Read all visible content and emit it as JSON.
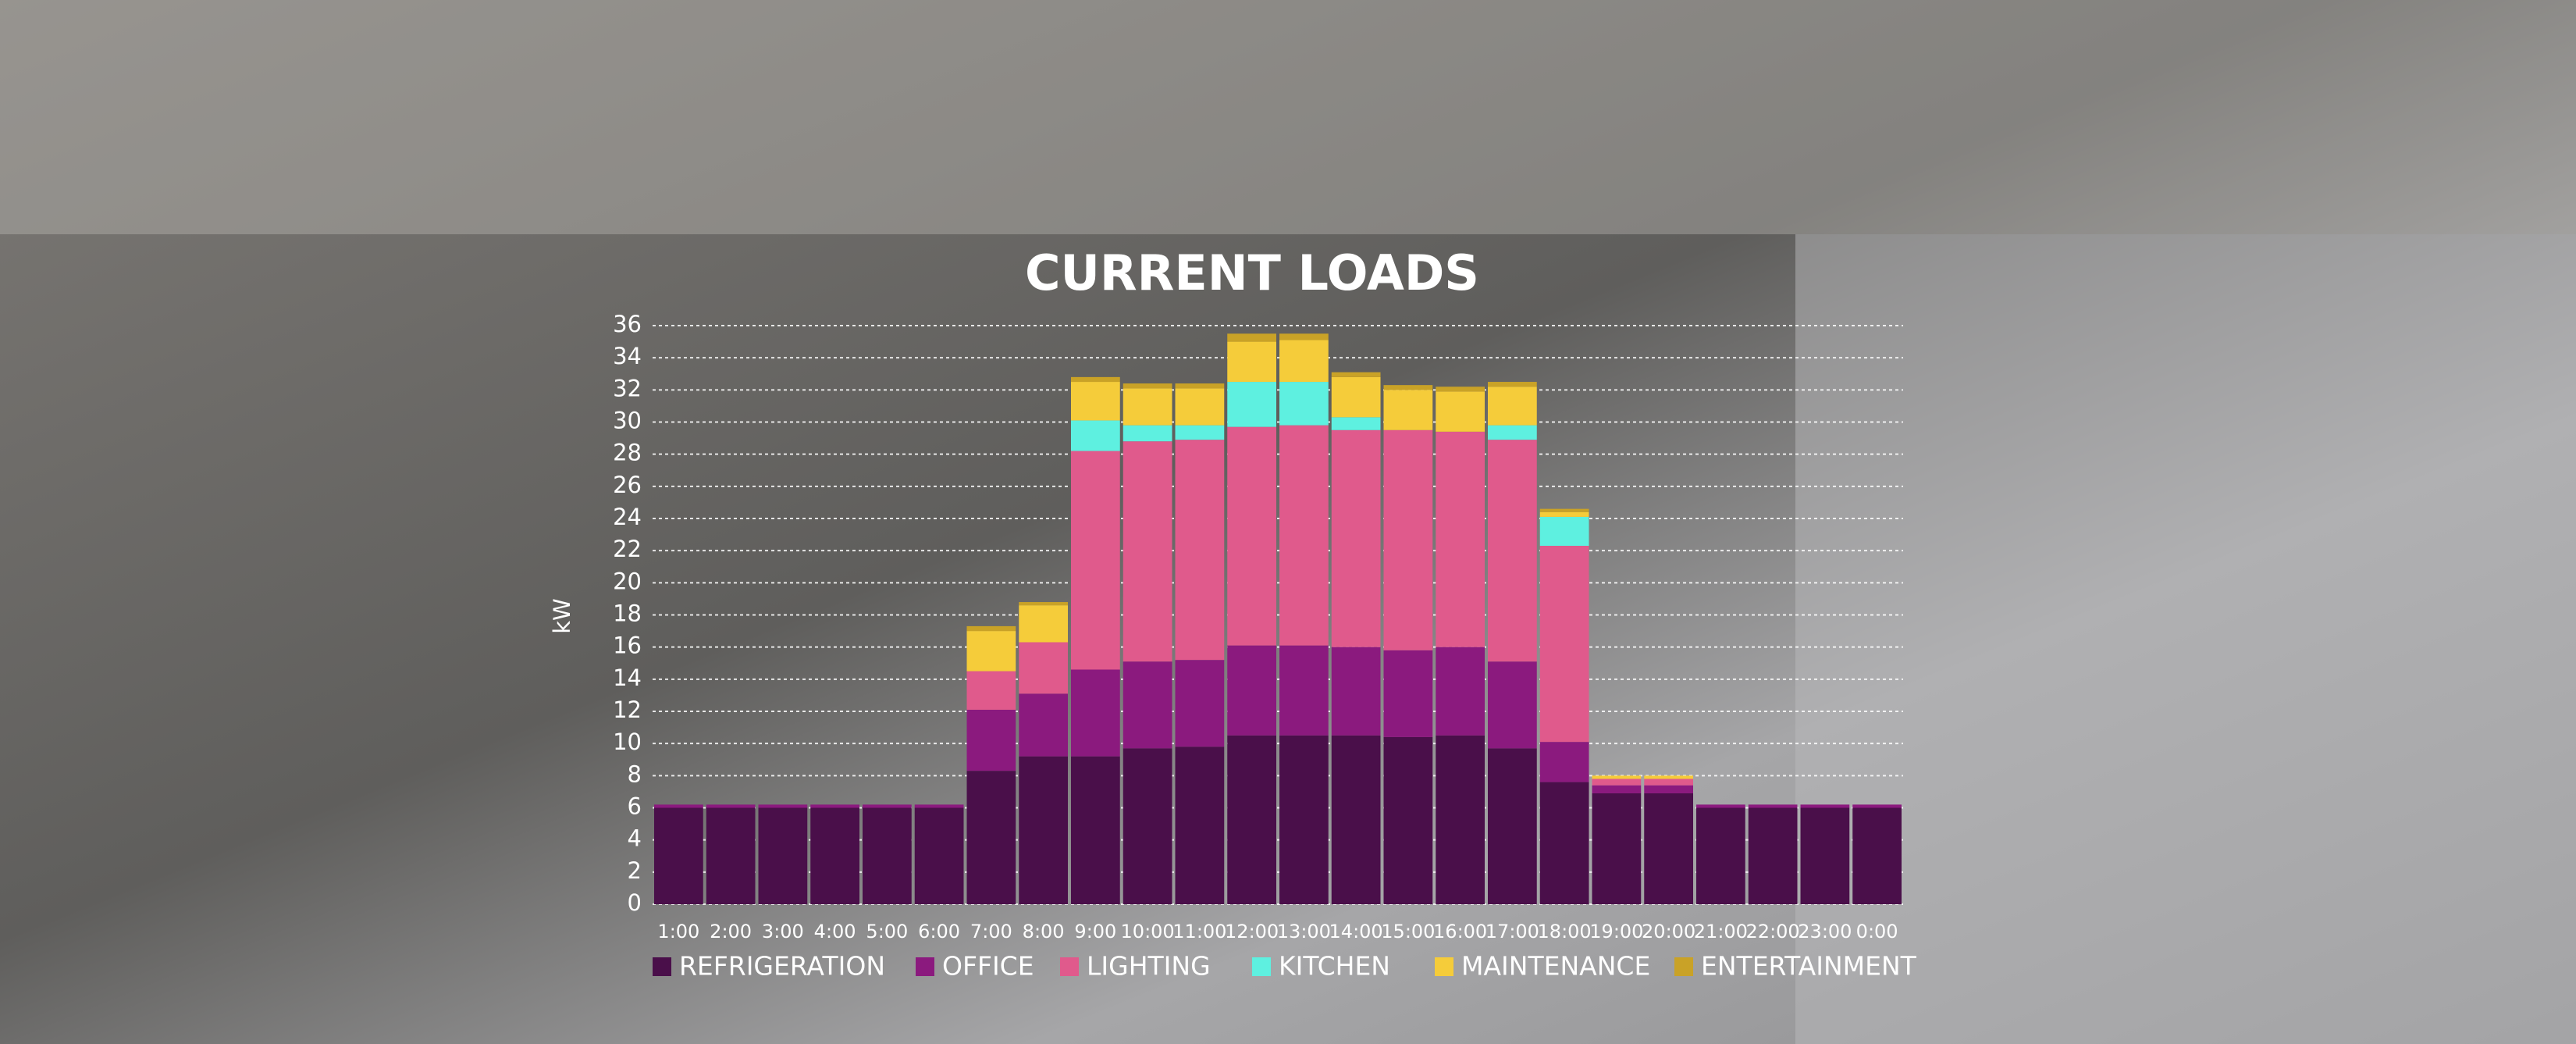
{
  "chart_data": {
    "type": "stacked_bar",
    "title": "CURRENT LOADS",
    "y_label": "kW",
    "categories": [
      "1:00",
      "2:00",
      "3:00",
      "4:00",
      "5:00",
      "6:00",
      "7:00",
      "8:00",
      "9:00",
      "10:00",
      "11:00",
      "12:00",
      "13:00",
      "14:00",
      "15:00",
      "16:00",
      "17:00",
      "18:00",
      "19:00",
      "20:00",
      "21:00",
      "22:00",
      "23:00",
      "0:00"
    ],
    "series": [
      {
        "name": "REFRIGERATION",
        "color": "#4a0f4a",
        "values": [
          6,
          6,
          6,
          6,
          6,
          6,
          8.3,
          9.2,
          9.2,
          9.7,
          9.8,
          10.5,
          10.5,
          10.5,
          10.4,
          10.5,
          9.7,
          7.6,
          6.9,
          6.9,
          6,
          6,
          6,
          6
        ]
      },
      {
        "name": "OFFICE",
        "color": "#8b1a7e",
        "values": [
          0.2,
          0.2,
          0.2,
          0.2,
          0.2,
          0.2,
          3.8,
          3.9,
          5.4,
          5.4,
          5.4,
          5.6,
          5.6,
          5.5,
          5.4,
          5.5,
          5.4,
          2.5,
          0.5,
          0.5,
          0.2,
          0.2,
          0.2,
          0.2
        ]
      },
      {
        "name": "LIGHTING",
        "color": "#e05a8c",
        "values": [
          0,
          0,
          0,
          0,
          0,
          0,
          2.4,
          3.2,
          13.6,
          13.7,
          13.7,
          13.6,
          13.7,
          13.5,
          13.7,
          13.4,
          13.8,
          12.2,
          0.4,
          0.4,
          0,
          0,
          0,
          0
        ]
      },
      {
        "name": "KITCHEN",
        "color": "#5ef0e0",
        "values": [
          0,
          0,
          0,
          0,
          0,
          0,
          0,
          0,
          1.9,
          1.0,
          0.9,
          2.8,
          2.7,
          0.8,
          0,
          0,
          0.9,
          1.8,
          0,
          0,
          0,
          0,
          0,
          0
        ]
      },
      {
        "name": "MAINTENANCE",
        "color": "#f5cc3a",
        "values": [
          0,
          0,
          0,
          0,
          0,
          0,
          2.5,
          2.3,
          2.4,
          2.3,
          2.3,
          2.5,
          2.6,
          2.5,
          2.5,
          2.5,
          2.4,
          0.3,
          0.2,
          0.2,
          0,
          0,
          0,
          0
        ]
      },
      {
        "name": "ENTERTAINMENT",
        "color": "#c9a227",
        "values": [
          0,
          0,
          0,
          0,
          0,
          0,
          0.3,
          0.2,
          0.3,
          0.3,
          0.3,
          0.5,
          0.4,
          0.3,
          0.3,
          0.3,
          0.3,
          0.2,
          0,
          0,
          0,
          0,
          0,
          0
        ]
      }
    ],
    "ylim": [
      0,
      36
    ],
    "yticks": [
      0,
      2,
      4,
      6,
      8,
      10,
      12,
      14,
      16,
      18,
      20,
      22,
      24,
      26,
      28,
      30,
      32,
      34,
      36
    ],
    "grid": true
  }
}
